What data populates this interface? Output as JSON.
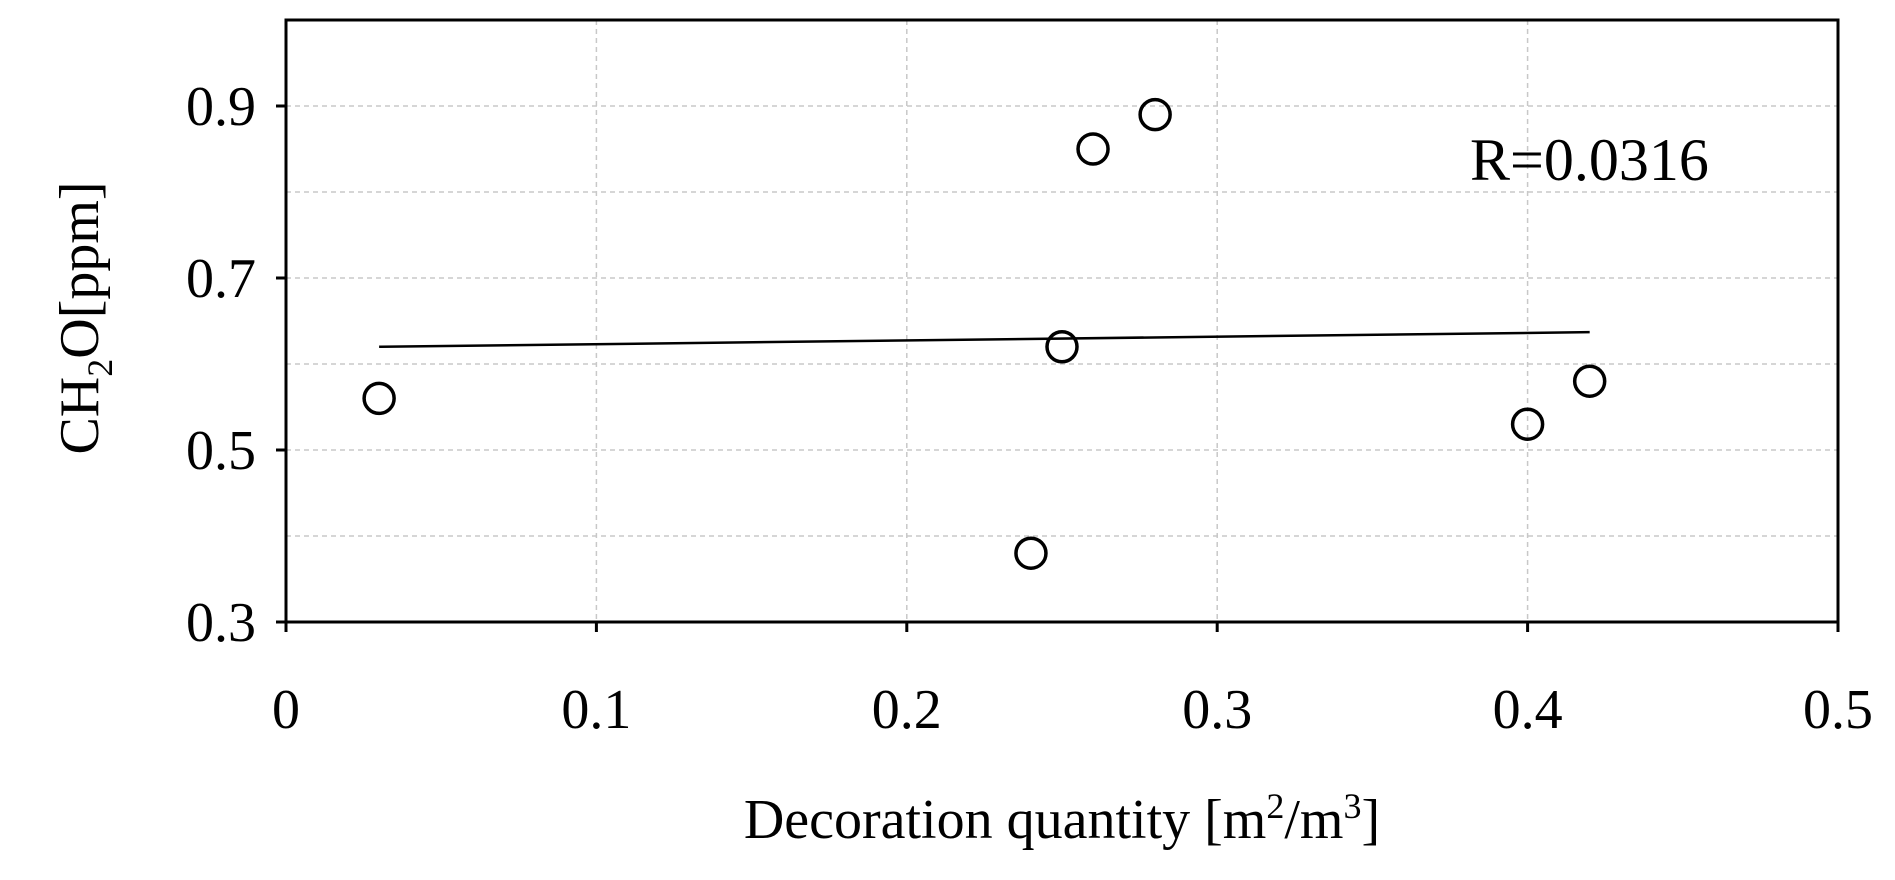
{
  "chart_data": {
    "type": "scatter",
    "xlabel_main": "Decoration quantity [m",
    "xlabel_sup1": "2",
    "xlabel_mid": "/m",
    "xlabel_sup2": "3",
    "xlabel_end": "]",
    "ylabel_a": "CH",
    "ylabel_sub": "2",
    "ylabel_b": "O[ppm]",
    "xlim": [
      0,
      0.5
    ],
    "ylim": [
      0.3,
      1.0
    ],
    "x_ticks": [
      "0",
      "0.1",
      "0.2",
      "0.3",
      "0.4",
      "0.5"
    ],
    "x_tick_values": [
      0,
      0.1,
      0.2,
      0.3,
      0.4,
      0.5
    ],
    "y_ticks": [
      "0.3",
      "0.5",
      "0.7",
      "0.9"
    ],
    "y_tick_values": [
      0.3,
      0.5,
      0.7,
      0.9
    ],
    "y_minor_grid": [
      0.4,
      0.6,
      0.8
    ],
    "grid": true,
    "points": [
      {
        "x": 0.03,
        "y": 0.56
      },
      {
        "x": 0.24,
        "y": 0.38
      },
      {
        "x": 0.25,
        "y": 0.62
      },
      {
        "x": 0.26,
        "y": 0.85
      },
      {
        "x": 0.28,
        "y": 0.89
      },
      {
        "x": 0.4,
        "y": 0.53
      },
      {
        "x": 0.42,
        "y": 0.58
      }
    ],
    "trendline": {
      "x": [
        0.03,
        0.42
      ],
      "y": [
        0.62,
        0.637
      ]
    },
    "annotation": "R=0.0316"
  }
}
